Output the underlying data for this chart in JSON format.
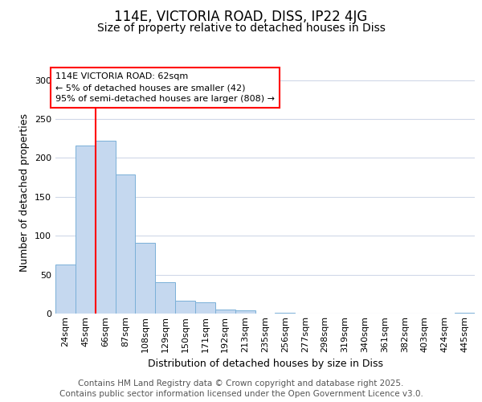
{
  "title_line1": "114E, VICTORIA ROAD, DISS, IP22 4JG",
  "title_line2": "Size of property relative to detached houses in Diss",
  "xlabel": "Distribution of detached houses by size in Diss",
  "ylabel": "Number of detached properties",
  "categories": [
    "24sqm",
    "45sqm",
    "66sqm",
    "87sqm",
    "108sqm",
    "129sqm",
    "150sqm",
    "171sqm",
    "192sqm",
    "213sqm",
    "235sqm",
    "256sqm",
    "277sqm",
    "298sqm",
    "319sqm",
    "340sqm",
    "361sqm",
    "382sqm",
    "403sqm",
    "424sqm",
    "445sqm"
  ],
  "values": [
    63,
    216,
    222,
    179,
    91,
    40,
    17,
    14,
    5,
    4,
    0,
    1,
    0,
    0,
    0,
    0,
    0,
    0,
    0,
    0,
    1
  ],
  "bar_color": "#c5d8ef",
  "bar_edge_color": "#7ab0d8",
  "red_line_x": 1.5,
  "annotation_box_text": "114E VICTORIA ROAD: 62sqm\n← 5% of detached houses are smaller (42)\n95% of semi-detached houses are larger (808) →",
  "ylim": [
    0,
    310
  ],
  "yticks": [
    0,
    50,
    100,
    150,
    200,
    250,
    300
  ],
  "background_color": "#ffffff",
  "grid_color": "#d0d8e8",
  "footer_text": "Contains HM Land Registry data © Crown copyright and database right 2025.\nContains public sector information licensed under the Open Government Licence v3.0.",
  "title_fontsize": 12,
  "subtitle_fontsize": 10,
  "axis_label_fontsize": 9,
  "tick_fontsize": 8,
  "annotation_fontsize": 8,
  "footer_fontsize": 7.5
}
